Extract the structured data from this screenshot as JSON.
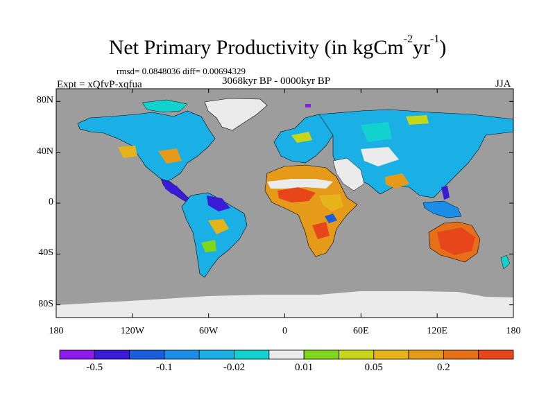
{
  "title": {
    "main": "Net Primary Productivity (in kgCm",
    "exp1": "-2",
    "mid": "yr",
    "exp2": "-1",
    "end": ")"
  },
  "stats": "rmsd= 0.0848036 diff= 0.00694329",
  "experiment": "Expt = xQfvP-xqfua",
  "period": "3068kyr BP - 0000kyr BP",
  "season": "JJA",
  "map": {
    "projection": "cylindrical-equidistant",
    "lon_range": [
      -180,
      180
    ],
    "lat_range": [
      -90,
      90
    ],
    "ocean_color": "#9d9d9d",
    "land_zero_color": "#ebebeb",
    "lat_labels": [
      {
        "lat": 80,
        "label": "80N"
      },
      {
        "lat": 40,
        "label": "40N"
      },
      {
        "lat": 0,
        "label": "0"
      },
      {
        "lat": -40,
        "label": "40S"
      },
      {
        "lat": -80,
        "label": "80S"
      }
    ],
    "lon_labels": [
      {
        "lon": -180,
        "label": "180"
      },
      {
        "lon": -120,
        "label": "120W"
      },
      {
        "lon": -60,
        "label": "60W"
      },
      {
        "lon": 0,
        "label": "0"
      },
      {
        "lon": 60,
        "label": "60E"
      },
      {
        "lon": 120,
        "label": "120E"
      },
      {
        "lon": 180,
        "label": "180"
      }
    ]
  },
  "colorbar": {
    "colors": [
      "#8c1aea",
      "#3b1cd6",
      "#1a5ee0",
      "#1a8ee6",
      "#1ab0e6",
      "#12d2d0",
      "#ebebeb",
      "#7fd61a",
      "#c8d61a",
      "#e6b41a",
      "#e69a1a",
      "#e6701a",
      "#e6461a"
    ],
    "labels": [
      {
        "after_box": 1,
        "text": "-0.5"
      },
      {
        "after_box": 3,
        "text": "-0.1"
      },
      {
        "after_box": 5,
        "text": "-0.02"
      },
      {
        "after_box": 7,
        "text": "0.01"
      },
      {
        "after_box": 9,
        "text": "0.05"
      },
      {
        "after_box": 11,
        "text": "0.2"
      }
    ]
  }
}
